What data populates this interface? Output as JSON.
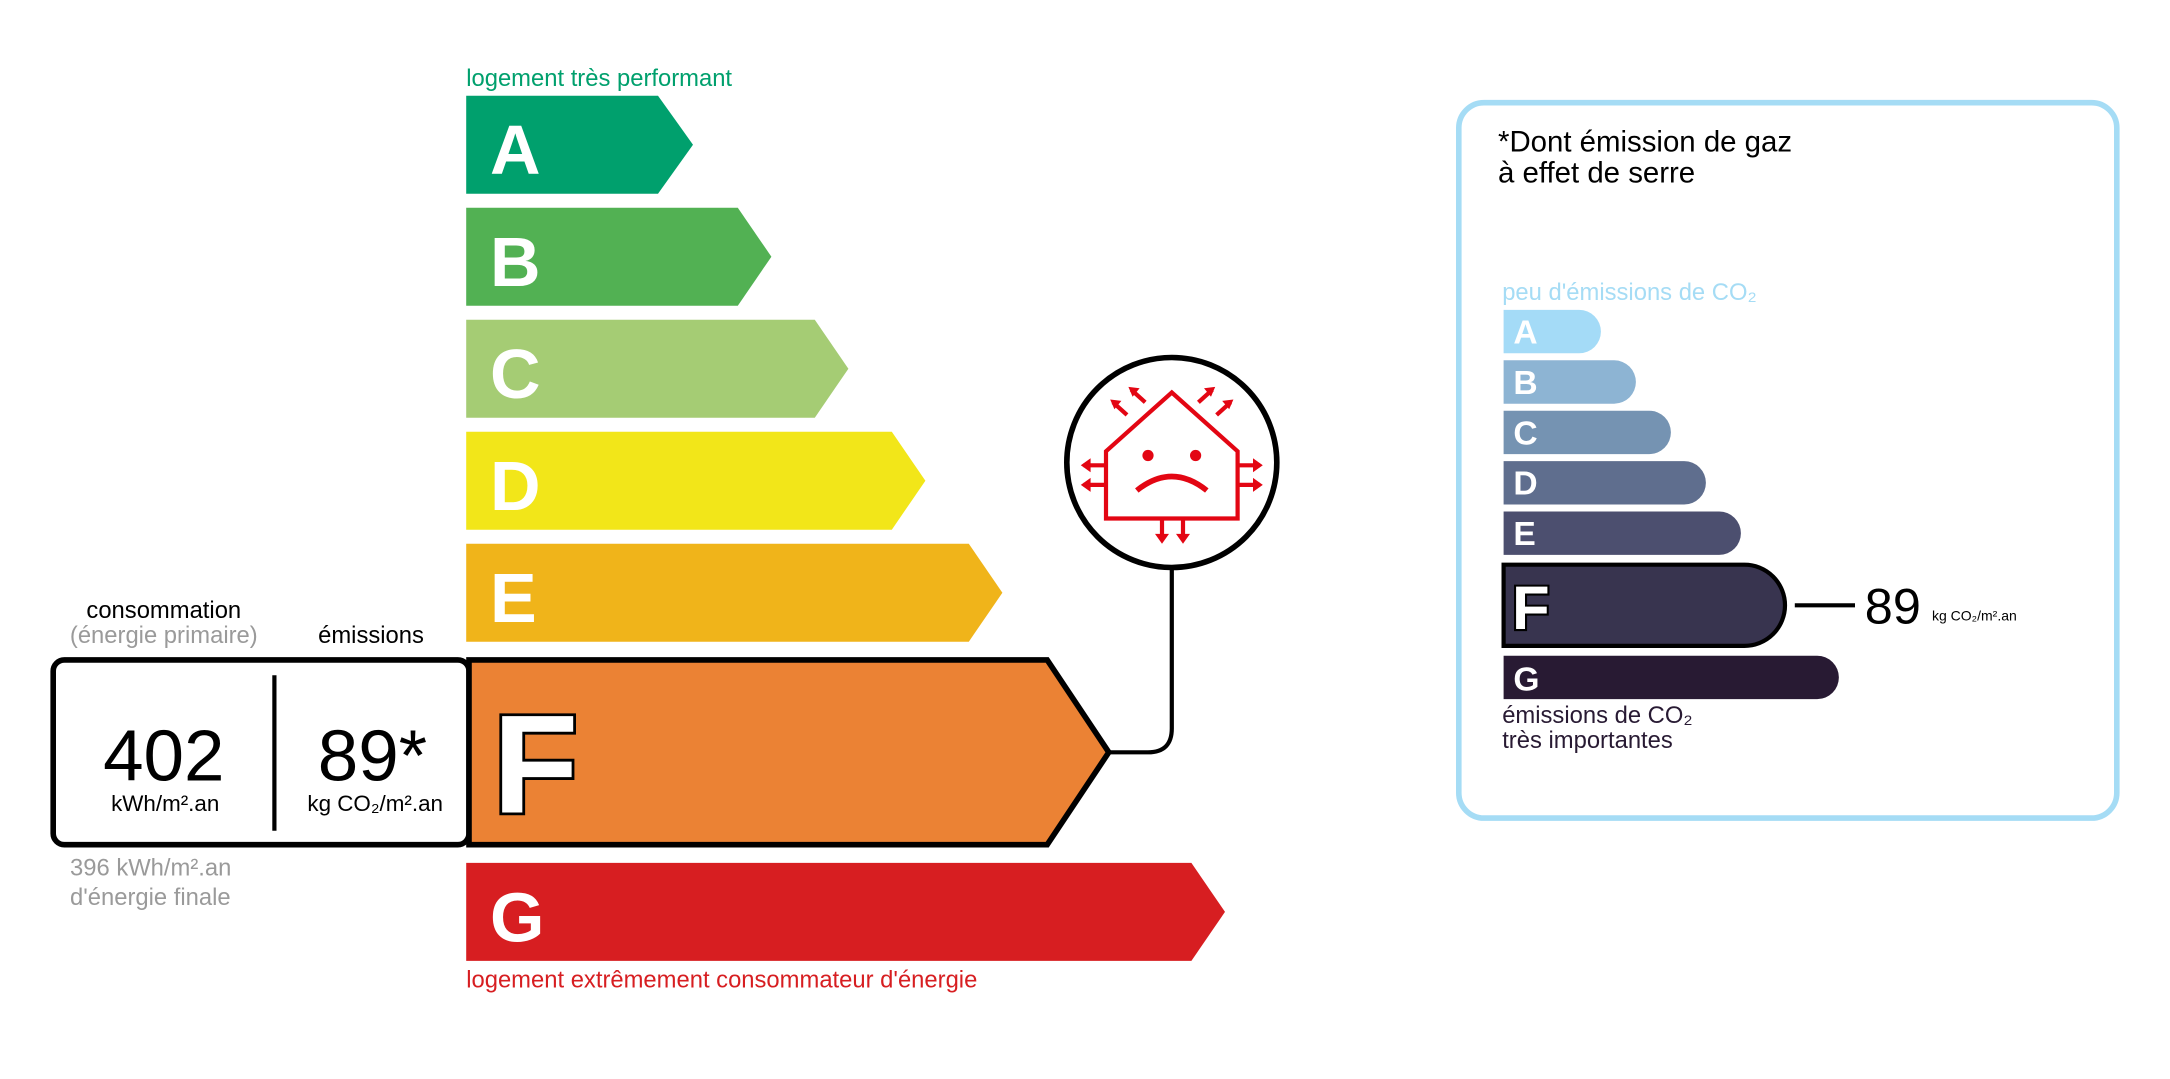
{
  "energy": {
    "top_label": "logement très performant",
    "bottom_label": "logement extrêmement consommateur d'énergie",
    "classes": [
      {
        "letter": "A",
        "color": "#00a06d"
      },
      {
        "letter": "B",
        "color": "#52b153"
      },
      {
        "letter": "C",
        "color": "#a5cc74"
      },
      {
        "letter": "D",
        "color": "#f2e619"
      },
      {
        "letter": "E",
        "color": "#f0b41a"
      },
      {
        "letter": "F",
        "color": "#eb8234"
      },
      {
        "letter": "G",
        "color": "#d71e21"
      }
    ],
    "current_class": "F",
    "consumption_heading": "consommation",
    "consumption_subheading": "(énergie primaire)",
    "emissions_heading": "émissions",
    "consumption_value": "402",
    "consumption_unit": "kWh/m².an",
    "emissions_value": "89*",
    "emissions_unit": "kg CO₂/m².an",
    "final_energy_line1": "396 kWh/m².an",
    "final_energy_line2": "d'énergie finale",
    "icon": "sad-house-heat-loss-icon"
  },
  "ges": {
    "title_line1": "*Dont émission de gaz",
    "title_line2": "à effet de serre",
    "top_label": "peu d'émissions de CO₂",
    "bottom_label_line1": "émissions de CO₂",
    "bottom_label_line2": "très importantes",
    "classes": [
      {
        "letter": "A",
        "color": "#a4dbf7"
      },
      {
        "letter": "B",
        "color": "#8db4d3"
      },
      {
        "letter": "C",
        "color": "#7593b2"
      },
      {
        "letter": "D",
        "color": "#5f6e8e"
      },
      {
        "letter": "E",
        "color": "#4c4f6f"
      },
      {
        "letter": "F",
        "color": "#38344f"
      },
      {
        "letter": "G",
        "color": "#281a33"
      }
    ],
    "current_class": "F",
    "value": "89",
    "unit": "kg CO₂/m².an",
    "border_color": "#a5dcf5"
  }
}
